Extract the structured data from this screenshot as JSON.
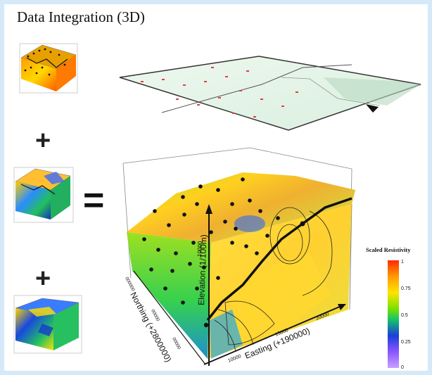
{
  "title": "Data Integration (3D)",
  "operators": {
    "plus": "+",
    "equals": "="
  },
  "main_block": {
    "z_axis_label": "Elevation (1/100m)",
    "z_tick": "10000",
    "y_axis_label": "Northing (+2800000)",
    "y_ticks": [
      "000000",
      "00000",
      "00000"
    ],
    "x_axis_label": "Easting (+190000)",
    "x_ticks": [
      "10000",
      "15000",
      "20000"
    ]
  },
  "legend": {
    "title": "Scaled Resistivity",
    "ticks": [
      "1",
      "0.75",
      "0.5",
      "0.25",
      "0"
    ],
    "colors": [
      "#ff2a00",
      "#ff9a00",
      "#ffe400",
      "#7be000",
      "#15c46a",
      "#1a3fd9",
      "#8b55ff",
      "#c7a2ff"
    ]
  }
}
